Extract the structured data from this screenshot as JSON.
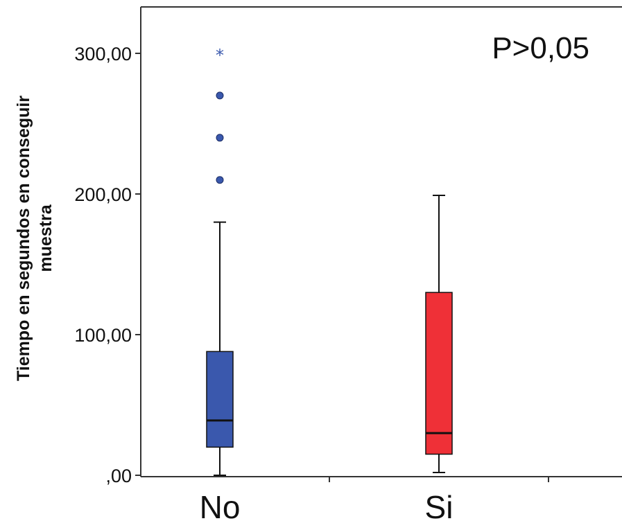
{
  "chart_data": {
    "type": "boxplot",
    "ylabel_lines": [
      "Tiempo en segundos en conseguir",
      "muestra"
    ],
    "ylim": [
      0,
      300
    ],
    "yticks": [
      0,
      100,
      200,
      300
    ],
    "ytick_labels": [
      ",00",
      "100,00",
      "200,00",
      "300,00"
    ],
    "categories": [
      "No",
      "Si"
    ],
    "annotation": "P>0,05",
    "groups": [
      {
        "category": "No",
        "whisker_low": 0,
        "q1": 20,
        "median": 39,
        "q3": 88,
        "whisker_high": 180,
        "outliers": [
          210,
          240,
          270
        ],
        "extremes": [
          300
        ],
        "color": "#3a58ad"
      },
      {
        "category": "Si",
        "whisker_low": 2,
        "q1": 15,
        "median": 30,
        "q3": 130,
        "whisker_high": 199,
        "outliers": [],
        "extremes": [],
        "color": "#ef3037"
      }
    ]
  }
}
